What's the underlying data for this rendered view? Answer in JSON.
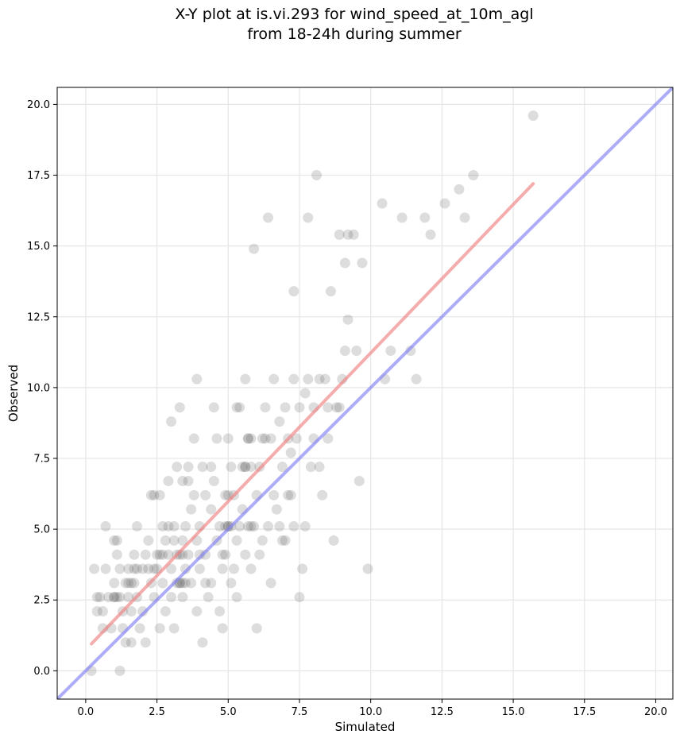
{
  "chart_data": {
    "type": "scatter",
    "title_line1": "X-Y plot at is.vi.293 for wind_speed_at_10m_agl",
    "title_line2": "from 18-24h during summer",
    "xlabel": "Simulated",
    "ylabel": "Observed",
    "xlim": [
      -1.0,
      20.6
    ],
    "ylim": [
      -1.0,
      20.6
    ],
    "xticks": [
      0.0,
      2.5,
      5.0,
      7.5,
      10.0,
      12.5,
      15.0,
      17.5,
      20.0
    ],
    "yticks": [
      0.0,
      2.5,
      5.0,
      7.5,
      10.0,
      12.5,
      15.0,
      17.5,
      20.0
    ],
    "xtick_labels": [
      "0.0",
      "2.5",
      "5.0",
      "7.5",
      "10.0",
      "12.5",
      "15.0",
      "17.5",
      "20.0"
    ],
    "ytick_labels": [
      "0.0",
      "2.5",
      "5.0",
      "7.5",
      "10.0",
      "12.5",
      "15.0",
      "17.5",
      "20.0"
    ],
    "grid": true,
    "colors": {
      "points": "#555555",
      "fit_line": "#f08080",
      "identity_line": "#7f7ff5"
    },
    "lines": [
      {
        "role": "regression fit",
        "x": [
          0.2,
          15.7
        ],
        "y": [
          0.95,
          17.2
        ]
      },
      {
        "role": "1:1 line",
        "x": [
          -1.0,
          20.6
        ],
        "y": [
          -1.0,
          20.6
        ]
      }
    ],
    "points": [
      [
        0.2,
        0.0
      ],
      [
        1.2,
        0.0
      ],
      [
        0.4,
        2.1
      ],
      [
        0.5,
        2.6
      ],
      [
        0.6,
        1.5
      ],
      [
        0.7,
        3.6
      ],
      [
        0.7,
        5.1
      ],
      [
        0.8,
        2.6
      ],
      [
        0.9,
        1.5
      ],
      [
        1.0,
        3.1
      ],
      [
        1.0,
        2.6
      ],
      [
        1.1,
        4.6
      ],
      [
        1.1,
        4.1
      ],
      [
        1.2,
        3.6
      ],
      [
        1.2,
        2.6
      ],
      [
        1.3,
        2.1
      ],
      [
        1.3,
        1.5
      ],
      [
        1.4,
        1.0
      ],
      [
        1.4,
        3.1
      ],
      [
        1.5,
        3.6
      ],
      [
        1.6,
        2.1
      ],
      [
        1.6,
        1.0
      ],
      [
        1.7,
        4.1
      ],
      [
        1.7,
        3.1
      ],
      [
        1.8,
        5.1
      ],
      [
        1.8,
        2.6
      ],
      [
        1.9,
        1.5
      ],
      [
        2.0,
        3.6
      ],
      [
        2.0,
        2.1
      ],
      [
        2.1,
        1.0
      ],
      [
        2.1,
        4.1
      ],
      [
        2.2,
        4.6
      ],
      [
        2.3,
        3.1
      ],
      [
        2.3,
        6.2
      ],
      [
        2.4,
        2.6
      ],
      [
        2.5,
        4.1
      ],
      [
        2.5,
        3.6
      ],
      [
        2.6,
        1.5
      ],
      [
        2.6,
        6.2
      ],
      [
        2.7,
        5.1
      ],
      [
        2.7,
        3.1
      ],
      [
        2.8,
        4.6
      ],
      [
        2.8,
        2.1
      ],
      [
        2.9,
        6.7
      ],
      [
        2.9,
        4.1
      ],
      [
        3.0,
        3.6
      ],
      [
        3.0,
        8.8
      ],
      [
        3.0,
        2.6
      ],
      [
        3.1,
        5.1
      ],
      [
        3.1,
        1.5
      ],
      [
        3.2,
        7.2
      ],
      [
        3.2,
        4.1
      ],
      [
        3.3,
        3.1
      ],
      [
        3.3,
        9.3
      ],
      [
        3.4,
        4.6
      ],
      [
        3.4,
        6.7
      ],
      [
        3.4,
        2.6
      ],
      [
        3.5,
        3.6
      ],
      [
        3.5,
        5.1
      ],
      [
        3.6,
        7.2
      ],
      [
        3.6,
        4.1
      ],
      [
        3.7,
        5.7
      ],
      [
        3.7,
        3.1
      ],
      [
        3.8,
        8.2
      ],
      [
        3.8,
        6.2
      ],
      [
        3.9,
        4.6
      ],
      [
        3.9,
        10.3
      ],
      [
        3.9,
        2.1
      ],
      [
        4.0,
        5.1
      ],
      [
        4.0,
        3.6
      ],
      [
        4.1,
        7.2
      ],
      [
        4.1,
        1.0
      ],
      [
        4.2,
        6.2
      ],
      [
        4.2,
        4.1
      ],
      [
        4.3,
        2.6
      ],
      [
        4.4,
        5.7
      ],
      [
        4.4,
        3.1
      ],
      [
        4.5,
        9.3
      ],
      [
        4.5,
        6.7
      ],
      [
        4.6,
        4.6
      ],
      [
        4.6,
        8.2
      ],
      [
        4.7,
        5.1
      ],
      [
        4.7,
        2.1
      ],
      [
        4.8,
        3.6
      ],
      [
        4.8,
        1.5
      ],
      [
        4.9,
        6.2
      ],
      [
        4.9,
        4.1
      ],
      [
        5.0,
        5.1
      ],
      [
        5.0,
        8.2
      ],
      [
        5.1,
        7.2
      ],
      [
        5.1,
        3.1
      ],
      [
        5.2,
        6.2
      ],
      [
        5.2,
        3.6
      ],
      [
        5.3,
        4.6
      ],
      [
        5.3,
        2.6
      ],
      [
        5.4,
        5.1
      ],
      [
        5.4,
        9.3
      ],
      [
        5.5,
        5.7
      ],
      [
        5.5,
        7.2
      ],
      [
        5.6,
        4.1
      ],
      [
        5.6,
        10.3
      ],
      [
        5.7,
        5.1
      ],
      [
        5.7,
        8.2
      ],
      [
        5.8,
        7.2
      ],
      [
        5.8,
        3.6
      ],
      [
        5.9,
        14.9
      ],
      [
        5.9,
        5.1
      ],
      [
        6.0,
        1.5
      ],
      [
        6.0,
        6.2
      ],
      [
        6.1,
        7.2
      ],
      [
        6.2,
        8.2
      ],
      [
        6.2,
        4.6
      ],
      [
        6.3,
        9.3
      ],
      [
        6.4,
        5.1
      ],
      [
        6.4,
        16.0
      ],
      [
        6.5,
        3.1
      ],
      [
        6.5,
        8.2
      ],
      [
        6.6,
        6.2
      ],
      [
        6.6,
        10.3
      ],
      [
        6.7,
        5.7
      ],
      [
        6.8,
        8.8
      ],
      [
        6.8,
        5.1
      ],
      [
        6.9,
        7.2
      ],
      [
        7.0,
        9.3
      ],
      [
        7.0,
        4.6
      ],
      [
        7.1,
        8.2
      ],
      [
        7.1,
        6.2
      ],
      [
        7.2,
        7.7
      ],
      [
        7.3,
        10.3
      ],
      [
        7.3,
        13.4
      ],
      [
        7.3,
        5.1
      ],
      [
        7.4,
        8.2
      ],
      [
        7.5,
        2.6
      ],
      [
        7.6,
        3.6
      ],
      [
        7.7,
        9.8
      ],
      [
        7.7,
        5.1
      ],
      [
        7.8,
        10.3
      ],
      [
        7.8,
        16.0
      ],
      [
        7.9,
        7.2
      ],
      [
        8.0,
        8.2
      ],
      [
        8.0,
        9.3
      ],
      [
        8.1,
        17.5
      ],
      [
        8.2,
        7.2
      ],
      [
        8.3,
        6.2
      ],
      [
        8.4,
        10.3
      ],
      [
        8.5,
        9.3
      ],
      [
        8.5,
        8.2
      ],
      [
        8.6,
        13.4
      ],
      [
        8.7,
        4.6
      ],
      [
        8.9,
        15.4
      ],
      [
        8.9,
        9.3
      ],
      [
        9.0,
        10.3
      ],
      [
        9.1,
        11.3
      ],
      [
        9.1,
        14.4
      ],
      [
        9.2,
        15.4
      ],
      [
        9.2,
        12.4
      ],
      [
        9.4,
        15.4
      ],
      [
        9.5,
        11.3
      ],
      [
        9.6,
        6.7
      ],
      [
        9.7,
        14.4
      ],
      [
        9.9,
        3.6
      ],
      [
        10.4,
        16.5
      ],
      [
        10.5,
        10.3
      ],
      [
        10.7,
        11.3
      ],
      [
        11.1,
        16.0
      ],
      [
        11.4,
        11.3
      ],
      [
        11.6,
        10.3
      ],
      [
        11.9,
        16.0
      ],
      [
        12.1,
        15.4
      ],
      [
        12.6,
        16.5
      ],
      [
        13.1,
        17.0
      ],
      [
        13.3,
        16.0
      ],
      [
        13.6,
        17.5
      ],
      [
        15.7,
        19.6
      ],
      [
        0.3,
        3.6
      ],
      [
        0.4,
        2.6
      ],
      [
        0.6,
        2.1
      ],
      [
        1.0,
        4.6
      ],
      [
        1.5,
        2.6
      ],
      [
        2.2,
        3.6
      ],
      [
        2.4,
        6.2
      ],
      [
        2.9,
        5.1
      ],
      [
        3.1,
        4.6
      ],
      [
        3.5,
        3.1
      ],
      [
        3.6,
        6.7
      ],
      [
        4.2,
        3.1
      ],
      [
        4.4,
        7.2
      ],
      [
        4.8,
        4.1
      ],
      [
        5.0,
        6.2
      ],
      [
        5.3,
        9.3
      ],
      [
        5.6,
        7.2
      ],
      [
        5.8,
        5.1
      ],
      [
        6.1,
        4.1
      ],
      [
        6.3,
        8.2
      ],
      [
        6.9,
        4.6
      ],
      [
        7.2,
        6.2
      ],
      [
        7.5,
        9.3
      ],
      [
        8.2,
        10.3
      ],
      [
        8.8,
        9.3
      ],
      [
        4.0,
        4.1
      ],
      [
        3.2,
        3.1
      ],
      [
        3.3,
        4.1
      ],
      [
        3.4,
        4.1
      ],
      [
        2.6,
        4.1
      ],
      [
        2.7,
        4.1
      ],
      [
        3.3,
        3.1
      ],
      [
        3.4,
        3.1
      ],
      [
        5.7,
        8.2
      ],
      [
        5.8,
        8.2
      ],
      [
        5.6,
        7.2
      ],
      [
        5.0,
        5.1
      ],
      [
        5.1,
        5.1
      ],
      [
        4.9,
        5.1
      ],
      [
        2.4,
        3.6
      ],
      [
        1.5,
        3.1
      ],
      [
        1.6,
        3.1
      ],
      [
        1.0,
        2.6
      ],
      [
        1.1,
        2.6
      ],
      [
        1.7,
        3.6
      ],
      [
        1.8,
        3.6
      ]
    ]
  }
}
